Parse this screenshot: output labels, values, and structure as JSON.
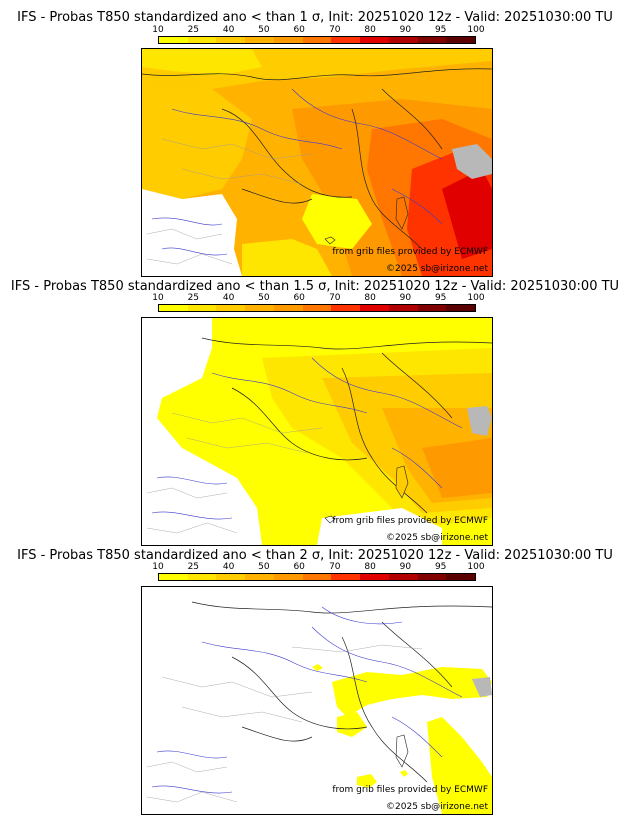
{
  "panels": [
    {
      "title": "IFS - Probas T850  standardized ano < than 1 σ, Init: 20251020 12z - Valid: 20251030:00 TU",
      "source_text": "from grib files provided by ECMWF",
      "copyright_text": "©2025 sb@irizone.net"
    },
    {
      "title": "IFS - Probas T850  standardized ano < than 1.5 σ, Init: 20251020 12z - Valid: 20251030:00 TU",
      "source_text": "from grib files provided by ECMWF",
      "copyright_text": "©2025 sb@irizone.net"
    },
    {
      "title": "IFS - Probas T850  standardized ano < than 2 σ, Init: 20251020 12z - Valid: 20251030:00 TU",
      "source_text": "from grib files provided by ECMWF",
      "copyright_text": "©2025 sb@irizone.net"
    }
  ],
  "colorbar": {
    "ticks": [
      "10",
      "25",
      "40",
      "50",
      "60",
      "70",
      "80",
      "90",
      "95",
      "100"
    ],
    "colors": [
      "#ffff00",
      "#ffe600",
      "#ffcc00",
      "#ffb300",
      "#ff9900",
      "#ff7700",
      "#ff3300",
      "#e00000",
      "#b00000",
      "#800000",
      "#5a0000"
    ]
  }
}
